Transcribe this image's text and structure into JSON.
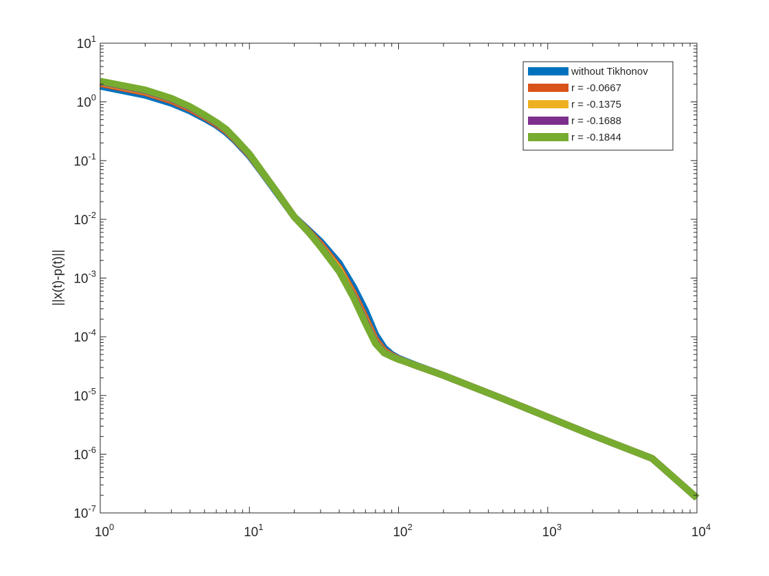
{
  "chart_data": {
    "type": "line",
    "title": "",
    "xlabel": "",
    "ylabel": "||x(t)-p(t)||",
    "xscale": "log",
    "yscale": "log",
    "xlim": [
      1,
      10000
    ],
    "ylim": [
      1e-07,
      10
    ],
    "grid": false,
    "legend_position": "top-right",
    "x_ticks": [
      {
        "value": 1,
        "base": "10",
        "exp": "0"
      },
      {
        "value": 10,
        "base": "10",
        "exp": "1"
      },
      {
        "value": 100,
        "base": "10",
        "exp": "2"
      },
      {
        "value": 1000,
        "base": "10",
        "exp": "3"
      },
      {
        "value": 10000,
        "base": "10",
        "exp": "4"
      }
    ],
    "y_ticks": [
      {
        "value": 1e-07,
        "base": "10",
        "exp": "-7"
      },
      {
        "value": 1e-06,
        "base": "10",
        "exp": "-6"
      },
      {
        "value": 1e-05,
        "base": "10",
        "exp": "-5"
      },
      {
        "value": 0.0001,
        "base": "10",
        "exp": "-4"
      },
      {
        "value": 0.001,
        "base": "10",
        "exp": "-3"
      },
      {
        "value": 0.01,
        "base": "10",
        "exp": "-2"
      },
      {
        "value": 0.1,
        "base": "10",
        "exp": "-1"
      },
      {
        "value": 1,
        "base": "10",
        "exp": "0"
      },
      {
        "value": 10,
        "base": "10",
        "exp": "1"
      }
    ],
    "series": [
      {
        "name": "without Tikhonov",
        "color": "#0072BD",
        "x": [
          1,
          2,
          3,
          4,
          5,
          6,
          7,
          8,
          10,
          12,
          15,
          20,
          25,
          30,
          40,
          50,
          60,
          70,
          80,
          90,
          100,
          110,
          130,
          200,
          500,
          1000,
          2000,
          5000,
          10000
        ],
        "y": [
          1.85,
          1.3,
          0.95,
          0.7,
          0.52,
          0.4,
          0.3,
          0.22,
          0.12,
          0.065,
          0.03,
          0.011,
          0.0065,
          0.0042,
          0.0018,
          0.0007,
          0.00028,
          0.00011,
          6.5e-05,
          5e-05,
          4.3e-05,
          3.9e-05,
          3.3e-05,
          2.2e-05,
          8.8e-06,
          4.3e-06,
          2.1e-06,
          8.5e-07,
          1.8e-07
        ]
      },
      {
        "name": "r = -0.0667",
        "color": "#D95319",
        "x": [
          1,
          2,
          3,
          4,
          5,
          6,
          7,
          8,
          10,
          12,
          15,
          20,
          25,
          30,
          40,
          50,
          60,
          70,
          80,
          90,
          100,
          110,
          130,
          200,
          500,
          1000,
          2000,
          5000,
          10000
        ],
        "y": [
          2.05,
          1.45,
          1.05,
          0.76,
          0.56,
          0.42,
          0.32,
          0.23,
          0.125,
          0.067,
          0.031,
          0.011,
          0.0062,
          0.0038,
          0.0015,
          0.00055,
          0.00021,
          9e-05,
          5.8e-05,
          4.8e-05,
          4.2e-05,
          3.8e-05,
          3.25e-05,
          2.2e-05,
          8.8e-06,
          4.3e-06,
          2.1e-06,
          8.5e-07,
          1.8e-07
        ]
      },
      {
        "name": "r = -0.1375",
        "color": "#EDB120",
        "x": [
          1,
          2,
          3,
          4,
          5,
          6,
          7,
          8,
          10,
          12,
          15,
          20,
          25,
          30,
          40,
          50,
          60,
          70,
          80,
          90,
          100,
          110,
          130,
          200,
          500,
          1000,
          2000,
          5000,
          10000
        ],
        "y": [
          2.15,
          1.52,
          1.1,
          0.8,
          0.58,
          0.44,
          0.33,
          0.235,
          0.127,
          0.067,
          0.031,
          0.011,
          0.006,
          0.0036,
          0.0014,
          0.0005,
          0.00019,
          8.3e-05,
          5.5e-05,
          4.7e-05,
          4.2e-05,
          3.8e-05,
          3.25e-05,
          2.2e-05,
          8.8e-06,
          4.3e-06,
          2.1e-06,
          8.5e-07,
          1.8e-07
        ]
      },
      {
        "name": "r = -0.1688",
        "color": "#7E2F8E",
        "x": [
          1,
          2,
          3,
          4,
          5,
          6,
          7,
          8,
          10,
          12,
          15,
          20,
          25,
          30,
          40,
          50,
          60,
          70,
          80,
          90,
          100,
          110,
          130,
          200,
          500,
          1000,
          2000,
          5000,
          10000
        ],
        "y": [
          2.2,
          1.56,
          1.12,
          0.81,
          0.59,
          0.44,
          0.335,
          0.237,
          0.128,
          0.068,
          0.031,
          0.011,
          0.006,
          0.0035,
          0.0013,
          0.00048,
          0.00018,
          8e-05,
          5.4e-05,
          4.65e-05,
          4.15e-05,
          3.8e-05,
          3.25e-05,
          2.2e-05,
          8.8e-06,
          4.3e-06,
          2.1e-06,
          8.5e-07,
          1.8e-07
        ]
      },
      {
        "name": "r = -0.1844",
        "color": "#77AC30",
        "x": [
          1,
          2,
          3,
          4,
          5,
          6,
          7,
          8,
          10,
          12,
          15,
          20,
          25,
          30,
          40,
          50,
          60,
          70,
          80,
          90,
          100,
          110,
          130,
          200,
          500,
          1000,
          2000,
          5000,
          10000
        ],
        "y": [
          2.25,
          1.6,
          1.15,
          0.83,
          0.6,
          0.45,
          0.34,
          0.24,
          0.13,
          0.068,
          0.031,
          0.011,
          0.006,
          0.0034,
          0.0013,
          0.00046,
          0.00017,
          7.7e-05,
          5.3e-05,
          4.6e-05,
          4.1e-05,
          3.8e-05,
          3.25e-05,
          2.2e-05,
          8.8e-06,
          4.3e-06,
          2.1e-06,
          8.5e-07,
          1.8e-07
        ]
      }
    ]
  }
}
